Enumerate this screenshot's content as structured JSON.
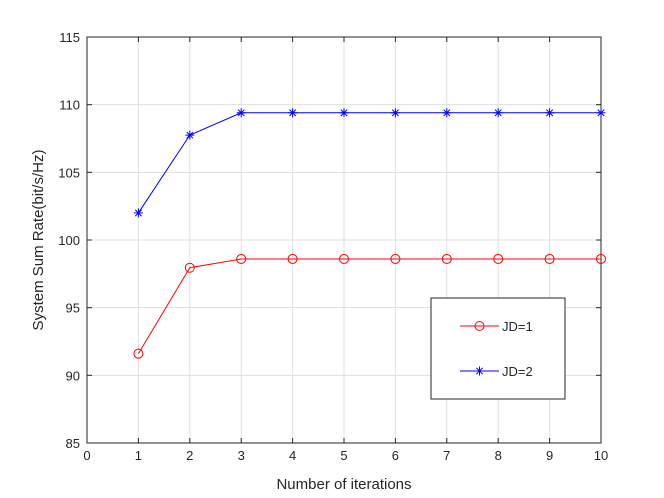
{
  "chart_data": {
    "type": "line",
    "title": "",
    "xlabel": "Number of iterations",
    "ylabel": "System Sum Rate(bit/s/Hz)",
    "xlim": [
      0,
      10
    ],
    "ylim": [
      85,
      115
    ],
    "xticks": [
      0,
      1,
      2,
      3,
      4,
      5,
      6,
      7,
      8,
      9,
      10
    ],
    "yticks": [
      85,
      90,
      95,
      100,
      105,
      110,
      115
    ],
    "grid": true,
    "legend_position": "right",
    "series": [
      {
        "name": "JD=1",
        "color": "#ff0000",
        "marker": "circle",
        "x": [
          1,
          2,
          3,
          4,
          5,
          6,
          7,
          8,
          9,
          10
        ],
        "y": [
          91.6,
          97.95,
          98.6,
          98.6,
          98.6,
          98.6,
          98.6,
          98.6,
          98.6,
          98.6
        ]
      },
      {
        "name": "JD=2",
        "color": "#0000ff",
        "marker": "asterisk",
        "x": [
          1,
          2,
          3,
          4,
          5,
          6,
          7,
          8,
          9,
          10
        ],
        "y": [
          102.0,
          107.75,
          109.4,
          109.4,
          109.4,
          109.4,
          109.4,
          109.4,
          109.4,
          109.4
        ]
      }
    ]
  }
}
